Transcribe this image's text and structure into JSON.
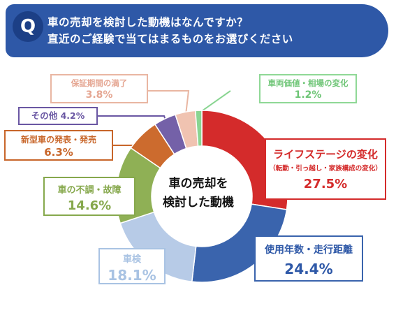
{
  "question": {
    "badge": "Q",
    "line1": "車の売却を検討した動機はなんですか？",
    "line2": "直近のご経験で当てはまるものをお選びください"
  },
  "center": {
    "line1": "車の売却を",
    "line2": "検討した動機"
  },
  "colors": {
    "header": "#2e58a7",
    "badge": "#1c3f86"
  },
  "chart_data": {
    "type": "pie",
    "donut": true,
    "slices": [
      {
        "label": "ライフステージの変化",
        "sub": "（転勤・引っ越し・家族構成の変化）",
        "value": 27.5,
        "pct": "27.5%",
        "color": "#d42b2b"
      },
      {
        "label": "使用年数・走行距離",
        "value": 24.4,
        "pct": "24.4%",
        "color": "#3a64ad"
      },
      {
        "label": "車検",
        "value": 18.1,
        "pct": "18.1%",
        "color": "#b7cbe7"
      },
      {
        "label": "車の不調・故障",
        "value": 14.6,
        "pct": "14.6%",
        "color": "#8fb055"
      },
      {
        "label": "新型車の発表・発売",
        "value": 6.3,
        "pct": "6.3%",
        "color": "#cc6b2e"
      },
      {
        "label": "その他",
        "value": 4.2,
        "pct": "4.2%",
        "color": "#7461a8"
      },
      {
        "label": "保証期間の満了",
        "value": 3.8,
        "pct": "3.8%",
        "color": "#f0c3b1"
      },
      {
        "label": "車両価値・相場の変化",
        "value": 1.2,
        "pct": "1.2%",
        "color": "#8ad592"
      }
    ]
  }
}
